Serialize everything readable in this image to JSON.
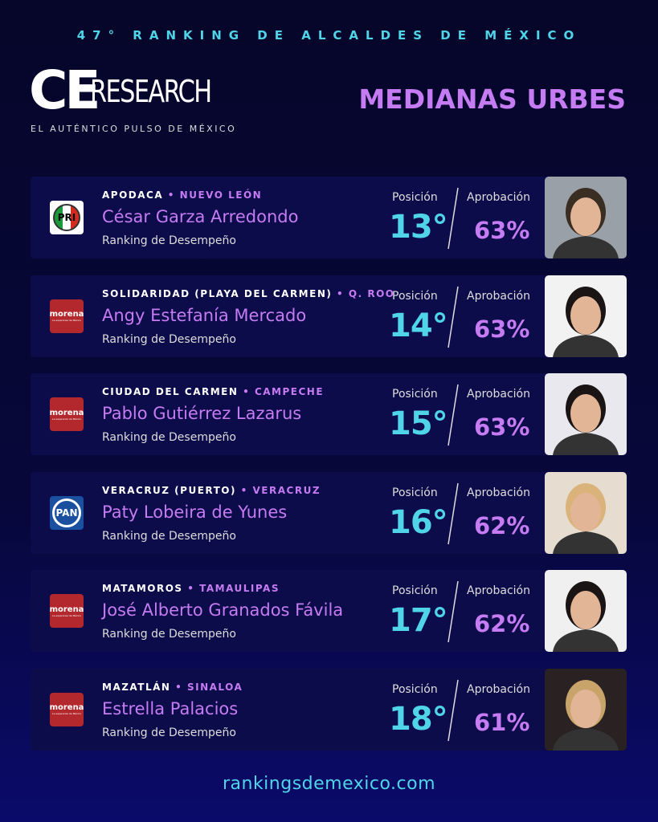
{
  "header": {
    "kicker": "47° RANKING DE ALCALDES DE MÉXICO",
    "brand_ce": "CE",
    "brand_research": "RESEARCH",
    "tagline": "EL AUTÉNTICO PULSO DE MÉXICO",
    "section": "MEDIANAS URBES"
  },
  "labels": {
    "position": "Posición",
    "approval": "Aprobación",
    "subtitle": "Ranking de Desempeño",
    "morena_tag": "La esperanza de México"
  },
  "entries": [
    {
      "city": "APODACA",
      "state": "NUEVO LEÓN",
      "name": "César Garza Arredondo",
      "party": "PRI",
      "position": "13°",
      "approval": "63%"
    },
    {
      "city": "SOLIDARIDAD (PLAYA DEL CARMEN)",
      "state": "Q. ROO",
      "name": "Angy Estefanía Mercado",
      "party": "morena",
      "position": "14°",
      "approval": "63%"
    },
    {
      "city": "CIUDAD DEL CARMEN",
      "state": "CAMPECHE",
      "name": "Pablo Gutiérrez Lazarus",
      "party": "morena",
      "position": "15°",
      "approval": "63%"
    },
    {
      "city": "VERACRUZ (PUERTO)",
      "state": "VERACRUZ",
      "name": "Paty Lobeira de Yunes",
      "party": "PAN",
      "position": "16°",
      "approval": "62%"
    },
    {
      "city": "MATAMOROS",
      "state": "TAMAULIPAS",
      "name": "José Alberto Granados Fávila",
      "party": "morena",
      "position": "17°",
      "approval": "62%"
    },
    {
      "city": "MAZATLÁN",
      "state": "SINALOA",
      "name": "Estrella Palacios",
      "party": "morena",
      "position": "18°",
      "approval": "61%"
    }
  ],
  "footer": {
    "url": "rankingsdemexico.com"
  }
}
